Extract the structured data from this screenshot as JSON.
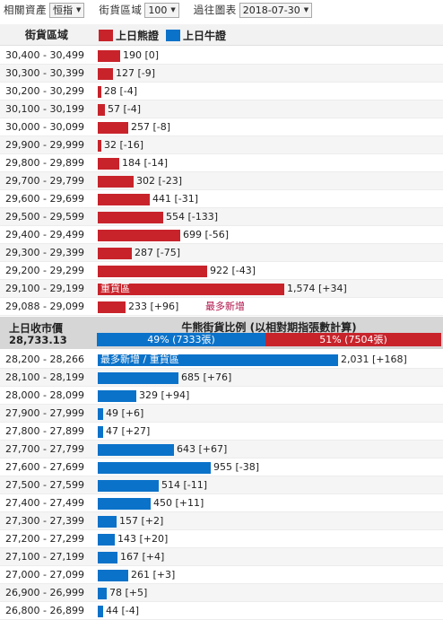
{
  "toolbar": {
    "asset_label": "相關資產",
    "asset_value": "恒指",
    "range_label": "街貨區域",
    "range_value": "100",
    "past_label": "過往圖表",
    "past_value": "2018-07-30"
  },
  "header": {
    "range_col": "街貨區域",
    "legend_bear": "上日熊證",
    "legend_bull": "上日牛證",
    "bear_color": "#c8232b",
    "bull_color": "#0b72c9"
  },
  "bear_rows": [
    {
      "range": "30,400 - 30,499",
      "value": 190,
      "label": "190 [0]"
    },
    {
      "range": "30,300 - 30,399",
      "value": 127,
      "label": "127 [-9]"
    },
    {
      "range": "30,200 - 30,299",
      "value": 28,
      "label": "28 [-4]"
    },
    {
      "range": "30,100 - 30,199",
      "value": 57,
      "label": "57 [-4]"
    },
    {
      "range": "30,000 - 30,099",
      "value": 257,
      "label": "257 [-8]"
    },
    {
      "range": "29,900 - 29,999",
      "value": 32,
      "label": "32 [-16]"
    },
    {
      "range": "29,800 - 29,899",
      "value": 184,
      "label": "184 [-14]"
    },
    {
      "range": "29,700 - 29,799",
      "value": 302,
      "label": "302 [-23]"
    },
    {
      "range": "29,600 - 29,699",
      "value": 441,
      "label": "441 [-31]"
    },
    {
      "range": "29,500 - 29,599",
      "value": 554,
      "label": "554 [-133]"
    },
    {
      "range": "29,400 - 29,499",
      "value": 699,
      "label": "699 [-56]"
    },
    {
      "range": "29,300 - 29,399",
      "value": 287,
      "label": "287 [-75]"
    },
    {
      "range": "29,200 - 29,299",
      "value": 922,
      "label": "922 [-43]"
    },
    {
      "range": "29,100 - 29,199",
      "value": 1574,
      "label": "1,574 [+34]",
      "inbar": "重貨區"
    },
    {
      "range": "29,088 - 29,099",
      "value": 233,
      "label": "233 [+96]",
      "note": "最多新增"
    }
  ],
  "middle": {
    "close_label": "上日收市價",
    "close_value": "28,733.13",
    "ratio_title": "牛熊街貨比例 (以相對期指張數計算)",
    "bull_pct": 49,
    "bear_pct": 51,
    "bull_text": "49% (7333張)",
    "bear_text": "51% (7504張)"
  },
  "bull_rows": [
    {
      "range": "28,200 - 28,266",
      "value": 2031,
      "label": "2,031 [+168]",
      "inbar": "最多新增 / 重貨區"
    },
    {
      "range": "28,100 - 28,199",
      "value": 685,
      "label": "685 [+76]"
    },
    {
      "range": "28,000 - 28,099",
      "value": 329,
      "label": "329 [+94]"
    },
    {
      "range": "27,900 - 27,999",
      "value": 49,
      "label": "49 [+6]"
    },
    {
      "range": "27,800 - 27,899",
      "value": 47,
      "label": "47 [+27]"
    },
    {
      "range": "27,700 - 27,799",
      "value": 643,
      "label": "643 [+67]"
    },
    {
      "range": "27,600 - 27,699",
      "value": 955,
      "label": "955 [-38]"
    },
    {
      "range": "27,500 - 27,599",
      "value": 514,
      "label": "514 [-11]"
    },
    {
      "range": "27,400 - 27,499",
      "value": 450,
      "label": "450 [+11]"
    },
    {
      "range": "27,300 - 27,399",
      "value": 157,
      "label": "157 [+2]"
    },
    {
      "range": "27,200 - 27,299",
      "value": 143,
      "label": "143 [+20]"
    },
    {
      "range": "27,100 - 27,199",
      "value": 167,
      "label": "167 [+4]"
    },
    {
      "range": "27,000 - 27,099",
      "value": 261,
      "label": "261 [+3]"
    },
    {
      "range": "26,900 - 26,999",
      "value": 78,
      "label": "78 [+5]"
    },
    {
      "range": "26,800 - 26,899",
      "value": 44,
      "label": "44 [-4]"
    }
  ]
}
